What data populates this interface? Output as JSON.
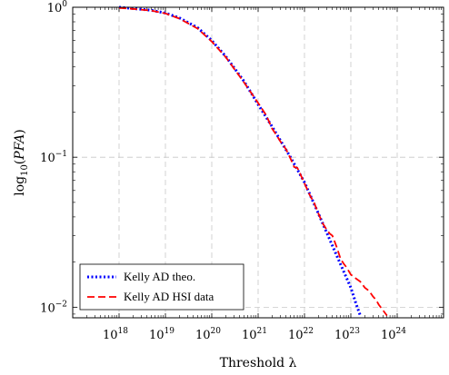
{
  "chart_data": {
    "type": "line",
    "xlabel": "Threshold λ",
    "ylabel": "log10(PFA)",
    "xscale": "log",
    "yscale": "log",
    "xlim": [
      1e+17,
      1e+25
    ],
    "ylim": [
      0.0085,
      1
    ],
    "grid": true,
    "legend_position": "bottom-left",
    "x_ticks": [
      {
        "value": 1e+18,
        "base": "10",
        "exp": "18"
      },
      {
        "value": 1e+19,
        "base": "10",
        "exp": "19"
      },
      {
        "value": 1e+20,
        "base": "10",
        "exp": "20"
      },
      {
        "value": 1e+21,
        "base": "10",
        "exp": "21"
      },
      {
        "value": 1e+22,
        "base": "10",
        "exp": "22"
      },
      {
        "value": 1e+23,
        "base": "10",
        "exp": "23"
      },
      {
        "value": 1e+24,
        "base": "10",
        "exp": "24"
      }
    ],
    "y_ticks": [
      {
        "value": 1,
        "base": "10",
        "exp": "0"
      },
      {
        "value": 0.1,
        "base": "10",
        "exp": "−1"
      },
      {
        "value": 0.01,
        "base": "10",
        "exp": "−2"
      }
    ],
    "series": [
      {
        "name": "Kelly AD theo.",
        "color": "#0000ff",
        "style": "dotted",
        "x": [
          1e+18,
          2e+18,
          5e+18,
          1e+19,
          2e+19,
          5e+19,
          1e+20,
          2e+20,
          5e+20,
          1e+21,
          2e+21,
          5e+21,
          1e+22,
          2e+22,
          5e+22,
          1e+23,
          1.3e+23,
          1.6e+23
        ],
        "y": [
          1.0,
          0.98,
          0.955,
          0.915,
          0.85,
          0.73,
          0.6,
          0.47,
          0.32,
          0.225,
          0.16,
          0.1,
          0.068,
          0.042,
          0.022,
          0.0135,
          0.0105,
          0.0088
        ]
      },
      {
        "name": "Kelly AD HSI data",
        "color": "#ff0000",
        "style": "dashed",
        "x": [
          1e+18,
          2e+18,
          5e+18,
          1e+19,
          2e+19,
          5e+19,
          1e+20,
          2e+20,
          5e+20,
          1e+21,
          1.5e+21,
          2e+21,
          2.5e+21,
          3e+21,
          4e+21,
          5e+21,
          6e+21,
          7e+21,
          8e+21,
          1e+22,
          1.3e+22,
          1.6e+22,
          2e+22,
          2.5e+22,
          3e+22,
          3.5e+22,
          4e+22,
          5e+22,
          6e+22,
          7e+22,
          8e+22,
          1e+23,
          1.3e+23,
          1.6e+23,
          2e+23,
          2.5e+23,
          3e+23,
          3.5e+23,
          4e+23,
          5e+23,
          6e+23
        ],
        "y": [
          0.99,
          0.975,
          0.95,
          0.91,
          0.84,
          0.72,
          0.59,
          0.465,
          0.315,
          0.23,
          0.19,
          0.155,
          0.14,
          0.128,
          0.113,
          0.098,
          0.086,
          0.085,
          0.078,
          0.067,
          0.056,
          0.05,
          0.042,
          0.036,
          0.033,
          0.031,
          0.03,
          0.025,
          0.021,
          0.0195,
          0.0185,
          0.0165,
          0.0155,
          0.0148,
          0.0135,
          0.0128,
          0.0118,
          0.0112,
          0.0104,
          0.0095,
          0.0088
        ]
      }
    ]
  }
}
